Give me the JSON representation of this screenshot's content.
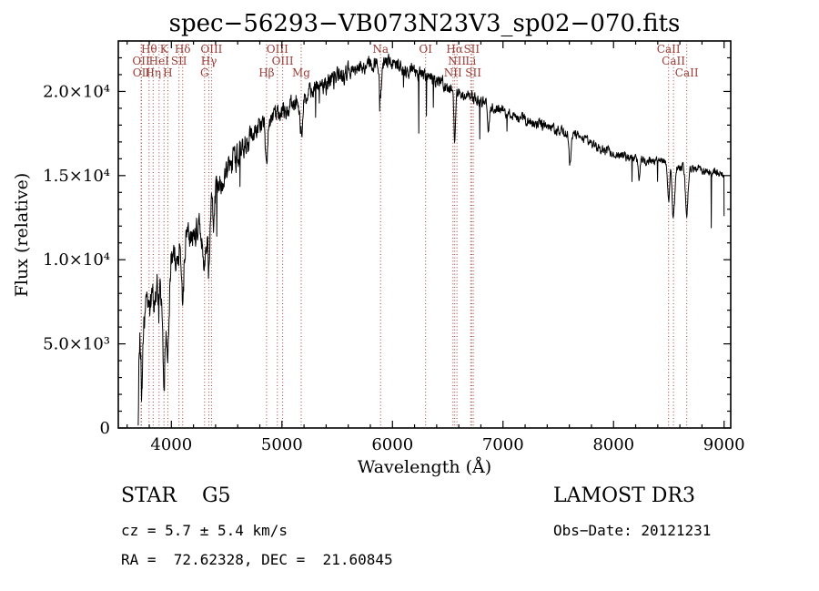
{
  "title": "spec−56293−VB073N23V3_sp02−070.fits",
  "footer": {
    "object_type": "STAR    G5",
    "survey": "LAMOST DR3",
    "cz": "cz = 5.7 ± 5.4 km/s",
    "obs_date": "Obs−Date: 20121231",
    "ra_dec": "RA =  72.62328, DEC =  21.60845"
  },
  "chart_data": {
    "type": "line",
    "title": "spec−56293−VB073N23V3_sp02−070.fits",
    "xlabel": "Wavelength (Å)",
    "ylabel": "Flux (relative)",
    "xlim": [
      3520,
      9060
    ],
    "ylim": [
      0,
      23000
    ],
    "x_ticks": [
      4000,
      5000,
      6000,
      7000,
      8000,
      9000
    ],
    "x_minor_step": 200,
    "y_ticks": [
      {
        "v": 0,
        "label": "0"
      },
      {
        "v": 5000,
        "label": "5.0×10³"
      },
      {
        "v": 10000,
        "label": "1.0×10⁴"
      },
      {
        "v": 15000,
        "label": "1.5×10⁴"
      },
      {
        "v": 20000,
        "label": "2.0×10⁴"
      }
    ],
    "y_minor_step": 1000,
    "grid": false,
    "legend": "none",
    "line_color": "#000000",
    "spectral_line_color": "#9a3b34",
    "spectrum_continuum": [
      [
        3700,
        2200
      ],
      [
        3715,
        5200
      ],
      [
        3730,
        4200
      ],
      [
        3745,
        6300
      ],
      [
        3760,
        6800
      ],
      [
        3785,
        7100
      ],
      [
        3820,
        7600
      ],
      [
        3860,
        8000
      ],
      [
        3900,
        8600
      ],
      [
        3950,
        9200
      ],
      [
        4000,
        10000
      ],
      [
        4050,
        10400
      ],
      [
        4100,
        10900
      ],
      [
        4150,
        11100
      ],
      [
        4200,
        11500
      ],
      [
        4250,
        11900
      ],
      [
        4300,
        12300
      ],
      [
        4350,
        13100
      ],
      [
        4400,
        14100
      ],
      [
        4450,
        14700
      ],
      [
        4500,
        15300
      ],
      [
        4600,
        16300
      ],
      [
        4700,
        17300
      ],
      [
        4800,
        17900
      ],
      [
        4900,
        18400
      ],
      [
        5000,
        18800
      ],
      [
        5100,
        19300
      ],
      [
        5200,
        19700
      ],
      [
        5300,
        20100
      ],
      [
        5400,
        20400
      ],
      [
        5500,
        20800
      ],
      [
        5600,
        21100
      ],
      [
        5700,
        21400
      ],
      [
        5800,
        21700
      ],
      [
        5900,
        21800
      ],
      [
        6000,
        21700
      ],
      [
        6100,
        21400
      ],
      [
        6200,
        21100
      ],
      [
        6300,
        20900
      ],
      [
        6400,
        20600
      ],
      [
        6500,
        20300
      ],
      [
        6600,
        20000
      ],
      [
        6700,
        19700
      ],
      [
        6800,
        19400
      ],
      [
        6900,
        19100
      ],
      [
        7000,
        18900
      ],
      [
        7100,
        18600
      ],
      [
        7200,
        18300
      ],
      [
        7300,
        18100
      ],
      [
        7400,
        17900
      ],
      [
        7500,
        17700
      ],
      [
        7600,
        17500
      ],
      [
        7700,
        17300
      ],
      [
        7800,
        16900
      ],
      [
        7900,
        16500
      ],
      [
        8000,
        16300
      ],
      [
        8100,
        16100
      ],
      [
        8200,
        16000
      ],
      [
        8300,
        15900
      ],
      [
        8400,
        15800
      ],
      [
        8500,
        15700
      ],
      [
        8600,
        15500
      ],
      [
        8700,
        15400
      ],
      [
        8800,
        15300
      ],
      [
        8900,
        15250
      ],
      [
        9000,
        15200
      ]
    ],
    "absorption_features": [
      {
        "wl": 3736,
        "depth": 2800,
        "width": 7
      },
      {
        "wl": 3933,
        "depth": 6000,
        "width": 11
      },
      {
        "wl": 3968,
        "depth": 5300,
        "width": 11
      },
      {
        "wl": 4102,
        "depth": 3700,
        "width": 9
      },
      {
        "wl": 4300,
        "depth": 2500,
        "width": 15
      },
      {
        "wl": 4340,
        "depth": 3500,
        "width": 9
      },
      {
        "wl": 4383,
        "depth": 1700,
        "width": 8
      },
      {
        "wl": 4861,
        "depth": 3000,
        "width": 9
      },
      {
        "wl": 5175,
        "depth": 2200,
        "width": 14
      },
      {
        "wl": 5892,
        "depth": 2300,
        "width": 9
      },
      {
        "wl": 6563,
        "depth": 3100,
        "width": 8
      },
      {
        "wl": 6868,
        "depth": 1500,
        "width": 8
      },
      {
        "wl": 7605,
        "depth": 1800,
        "width": 9
      },
      {
        "wl": 8230,
        "depth": 1300,
        "width": 8
      },
      {
        "wl": 8498,
        "depth": 2100,
        "width": 9
      },
      {
        "wl": 8542,
        "depth": 3200,
        "width": 11
      },
      {
        "wl": 8662,
        "depth": 2800,
        "width": 11
      }
    ],
    "noise_model": {
      "seed": 20121231,
      "ar": 0.5,
      "amps": [
        [
          4000,
          950
        ],
        [
          4700,
          780
        ],
        [
          5600,
          560
        ],
        [
          6500,
          430
        ],
        [
          7500,
          330
        ],
        [
          9100,
          260
        ]
      ],
      "spike_prob": 0.008,
      "spike_min": 800,
      "spike_max": 3200
    },
    "sample_step": 3,
    "x_data_range": [
      3700,
      9000
    ],
    "end_drop": {
      "wl": 9000,
      "flux": 12600
    },
    "spectral_lines": [
      {
        "wl": 3798,
        "label": "Hθ",
        "row": 1
      },
      {
        "wl": 3933,
        "label": "K",
        "row": 1
      },
      {
        "wl": 4102,
        "label": "Hδ",
        "row": 1
      },
      {
        "wl": 3727,
        "label": "OII",
        "row": 2
      },
      {
        "wl": 3889,
        "label": "HeI",
        "row": 2
      },
      {
        "wl": 4069,
        "label": "SII",
        "row": 2
      },
      {
        "wl": 3729,
        "label": "OII",
        "row": 3
      },
      {
        "wl": 3835,
        "label": "Hη",
        "row": 3
      },
      {
        "wl": 3968,
        "label": "H",
        "row": 3
      },
      {
        "wl": 4363,
        "label": "OIII",
        "row": 1
      },
      {
        "wl": 4340,
        "label": "Hγ",
        "row": 2
      },
      {
        "wl": 4300,
        "label": "G",
        "row": 3
      },
      {
        "wl": 4959,
        "label": "OIII",
        "row": 1
      },
      {
        "wl": 5007,
        "label": "OIII",
        "row": 2
      },
      {
        "wl": 4861,
        "label": "Hβ",
        "row": 3
      },
      {
        "wl": 5175,
        "label": "Mg",
        "row": 3
      },
      {
        "wl": 5892,
        "label": "Na",
        "row": 1
      },
      {
        "wl": 6300,
        "label": "OI",
        "row": 1
      },
      {
        "wl": 6563,
        "label": "Hα",
        "row": 1
      },
      {
        "wl": 6716,
        "label": "SII",
        "row": 1
      },
      {
        "wl": 6583,
        "label": "NII",
        "row": 2
      },
      {
        "wl": 6708,
        "label": "Li",
        "row": 2
      },
      {
        "wl": 6548,
        "label": "NII",
        "row": 3
      },
      {
        "wl": 6731,
        "label": "SII",
        "row": 3
      },
      {
        "wl": 8498,
        "label": "CaII",
        "row": 1
      },
      {
        "wl": 8542,
        "label": "CaII",
        "row": 2
      },
      {
        "wl": 8662,
        "label": "CaII",
        "row": 3
      }
    ]
  }
}
